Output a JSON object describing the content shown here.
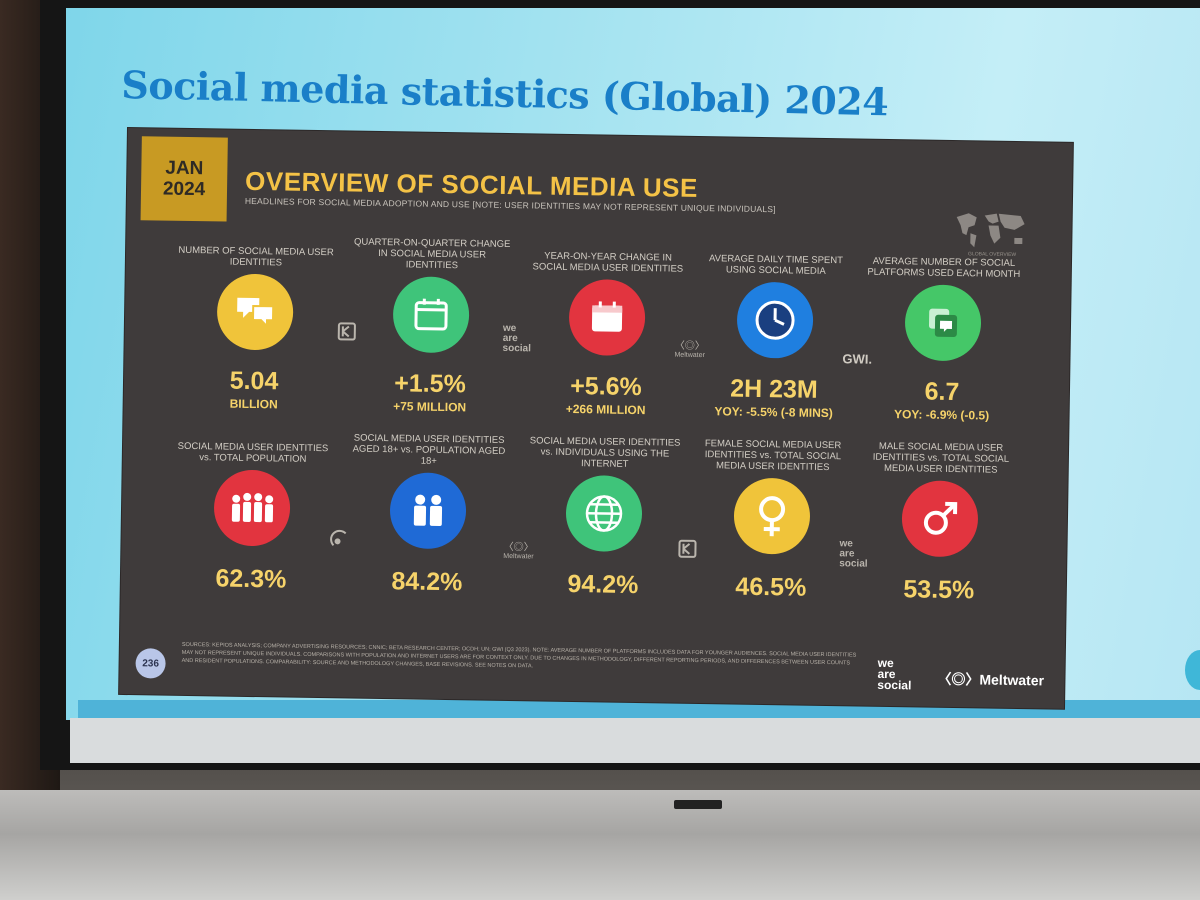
{
  "slide": {
    "heading": "Social media statistics (Global) 2024"
  },
  "panel": {
    "date_line1": "JAN",
    "date_line2": "2024",
    "title": "OVERVIEW OF SOCIAL MEDIA USE",
    "subtitle": "HEADLINES FOR SOCIAL MEDIA ADOPTION AND USE [NOTE: USER IDENTITIES MAY NOT REPRESENT UNIQUE INDIVIDUALS]",
    "map_caption": "GLOBAL OVERVIEW",
    "page_number": "236",
    "sources_text": "SOURCES: KEPIOS ANALYSIS; COMPANY ADVERTISING RESOURCES; CNNIC; BETA RESEARCH CENTER; OCDH; UN; GWI (Q3 2023). NOTE: AVERAGE NUMBER OF PLATFORMS INCLUDES DATA FOR YOUNGER AUDIENCES. SOCIAL MEDIA USER IDENTITIES MAY NOT REPRESENT UNIQUE INDIVIDUALS. COMPARISONS WITH POPULATION AND INTERNET USERS ARE FOR CONTEXT ONLY. DUE TO CHANGES IN METHODOLOGY, DIFFERENT REPORTING PERIODS, AND DIFFERENCES BETWEEN USER COUNTS AND RESIDENT POPULATIONS. COMPARABILITY: SOURCE AND METHODOLOGY CHANGES, BASE REVISIONS. SEE NOTES ON DATA.",
    "footer_we": [
      "we",
      "are",
      "social"
    ],
    "footer_meltwater": "Meltwater"
  },
  "stats_row1": [
    {
      "label": "NUMBER OF SOCIAL MEDIA USER IDENTITIES",
      "value": "5.04",
      "sub": "BILLION",
      "icon": "speech-bubbles-icon",
      "color": "#f0c43a"
    },
    {
      "label": "QUARTER-ON-QUARTER CHANGE IN SOCIAL MEDIA USER IDENTITIES",
      "value": "+1.5%",
      "sub": "+75 MILLION",
      "icon": "calendar-90-icon",
      "color": "#3fc47a"
    },
    {
      "label": "YEAR-ON-YEAR CHANGE IN SOCIAL MEDIA USER IDENTITIES",
      "value": "+5.6%",
      "sub": "+266 MILLION",
      "icon": "calendar-365-icon",
      "color": "#e2343f"
    },
    {
      "label": "AVERAGE DAILY TIME SPENT USING SOCIAL MEDIA",
      "value": "2H 23M",
      "sub": "YOY: -5.5% (-8 MINS)",
      "icon": "clock-icon",
      "color": "#1f7fe0"
    },
    {
      "label": "AVERAGE NUMBER OF SOCIAL PLATFORMS USED EACH MONTH",
      "value": "6.7",
      "sub": "YOY: -6.9% (-0.5)",
      "icon": "stacked-apps-icon",
      "color": "#45c768"
    }
  ],
  "stats_row2": [
    {
      "label": "SOCIAL MEDIA USER IDENTITIES vs. TOTAL POPULATION",
      "value": "62.3%",
      "icon": "people-group-icon",
      "color": "#e2343f"
    },
    {
      "label": "SOCIAL MEDIA USER IDENTITIES AGED 18+ vs. POPULATION AGED 18+",
      "value": "84.2%",
      "icon": "adults-icon",
      "color": "#1f6ad6"
    },
    {
      "label": "SOCIAL MEDIA USER IDENTITIES vs. INDIVIDUALS USING THE INTERNET",
      "value": "94.2%",
      "icon": "globe-icon",
      "color": "#3fc47a"
    },
    {
      "label": "FEMALE SOCIAL MEDIA USER IDENTITIES vs. TOTAL SOCIAL MEDIA USER IDENTITIES",
      "value": "46.5%",
      "icon": "female-symbol-icon",
      "color": "#f0c43a"
    },
    {
      "label": "MALE SOCIAL MEDIA USER IDENTITIES vs. TOTAL SOCIAL MEDIA USER IDENTITIES",
      "value": "53.5%",
      "icon": "male-symbol-icon",
      "color": "#e2343f"
    }
  ],
  "source_logos": {
    "we": [
      "we",
      "are",
      "social"
    ],
    "meltwater": "Meltwater",
    "gwi": "GWI.",
    "kepios": "Kepios"
  }
}
